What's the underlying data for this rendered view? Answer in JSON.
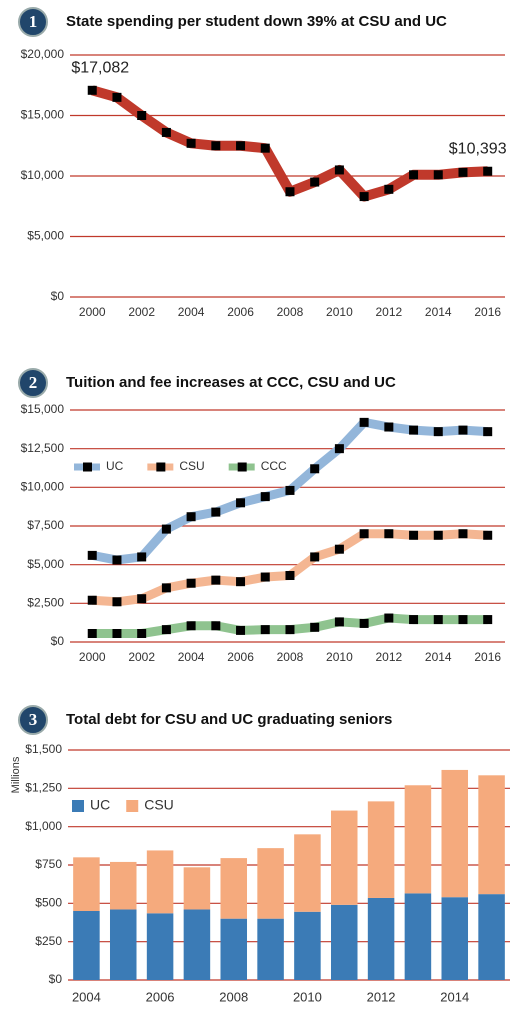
{
  "chart_data": [
    {
      "type": "line",
      "badge": "1",
      "title": "State spending per student down 39% at CSU and UC",
      "x": [
        2000,
        2001,
        2002,
        2003,
        2004,
        2005,
        2006,
        2007,
        2008,
        2009,
        2010,
        2011,
        2012,
        2013,
        2014,
        2015,
        2016
      ],
      "values": [
        17082,
        16500,
        15000,
        13600,
        12700,
        12500,
        12500,
        12300,
        8700,
        9500,
        10500,
        8300,
        8900,
        10100,
        10100,
        10300,
        10393
      ],
      "value_labels": [
        "$17,082",
        null,
        null,
        null,
        null,
        null,
        null,
        null,
        null,
        null,
        null,
        null,
        null,
        null,
        null,
        null,
        "$10,393"
      ],
      "color": "#c0392b",
      "xlim": [
        1999.1,
        2016.7
      ],
      "xticks": [
        2000,
        2002,
        2004,
        2006,
        2008,
        2010,
        2012,
        2014,
        2016
      ],
      "ylim": [
        0,
        20000
      ],
      "yticks": [
        {
          "value": 0,
          "label": "$0"
        },
        {
          "value": 5000,
          "label": "$5,000"
        },
        {
          "value": 10000,
          "label": "$10,000"
        },
        {
          "value": 15000,
          "label": "$15,000"
        },
        {
          "value": 20000,
          "label": "$20,000"
        }
      ],
      "grid": true
    },
    {
      "type": "line",
      "badge": "2",
      "title": "Tuition and fee increases at CCC, CSU and UC",
      "x": [
        2000,
        2001,
        2002,
        2003,
        2004,
        2005,
        2006,
        2007,
        2008,
        2009,
        2010,
        2011,
        2012,
        2013,
        2014,
        2015,
        2016
      ],
      "series": [
        {
          "name": "UC",
          "color": "#93b6da",
          "values": [
            5600,
            5300,
            5500,
            7300,
            8100,
            8400,
            9000,
            9400,
            9800,
            11200,
            12500,
            14200,
            13900,
            13700,
            13600,
            13700,
            13600
          ]
        },
        {
          "name": "CSU",
          "color": "#f4b692",
          "values": [
            2700,
            2600,
            2800,
            3500,
            3800,
            4000,
            3900,
            4200,
            4300,
            5500,
            6000,
            7000,
            7000,
            6900,
            6900,
            7000,
            6900
          ]
        },
        {
          "name": "CCC",
          "color": "#8fc38f",
          "values": [
            550,
            550,
            550,
            800,
            1050,
            1050,
            750,
            800,
            800,
            950,
            1300,
            1200,
            1550,
            1450,
            1450,
            1450,
            1450
          ]
        }
      ],
      "xlim": [
        1999.1,
        2016.7
      ],
      "xticks": [
        2000,
        2002,
        2004,
        2006,
        2008,
        2010,
        2012,
        2014,
        2016
      ],
      "ylim": [
        0,
        15000
      ],
      "yticks": [
        {
          "value": 0,
          "label": "$0"
        },
        {
          "value": 2500,
          "label": "$2,500"
        },
        {
          "value": 5000,
          "label": "$5,000"
        },
        {
          "value": 7500,
          "label": "$7,500"
        },
        {
          "value": 10000,
          "label": "$10,000"
        },
        {
          "value": 12500,
          "label": "$12,500"
        },
        {
          "value": 15000,
          "label": "$15,000"
        }
      ],
      "grid": true,
      "legend": "upper left"
    },
    {
      "type": "bar",
      "stacked": true,
      "badge": "3",
      "title": "Total debt for CSU and UC graduating seniors",
      "y_label": "Millions",
      "categories": [
        "2004",
        null,
        "2006",
        null,
        "2008",
        null,
        "2010",
        null,
        "2012",
        null,
        "2014",
        null
      ],
      "series": [
        {
          "name": "UC",
          "color": "#3b7bb6",
          "values": [
            450,
            460,
            435,
            460,
            400,
            400,
            445,
            490,
            535,
            565,
            540,
            560
          ]
        },
        {
          "name": "CSU",
          "color": "#f5aa7d",
          "values": [
            350,
            310,
            410,
            275,
            395,
            460,
            505,
            615,
            630,
            705,
            830,
            775
          ]
        }
      ],
      "ylim": [
        0,
        1500
      ],
      "yticks": [
        {
          "value": 0,
          "label": "$0"
        },
        {
          "value": 250,
          "label": "$250"
        },
        {
          "value": 500,
          "label": "$500"
        },
        {
          "value": 750,
          "label": "$750"
        },
        {
          "value": 1000,
          "label": "$1,000"
        },
        {
          "value": 1250,
          "label": "$1,250"
        },
        {
          "value": 1500,
          "label": "$1,500"
        }
      ],
      "grid": true,
      "legend": "upper left"
    }
  ]
}
